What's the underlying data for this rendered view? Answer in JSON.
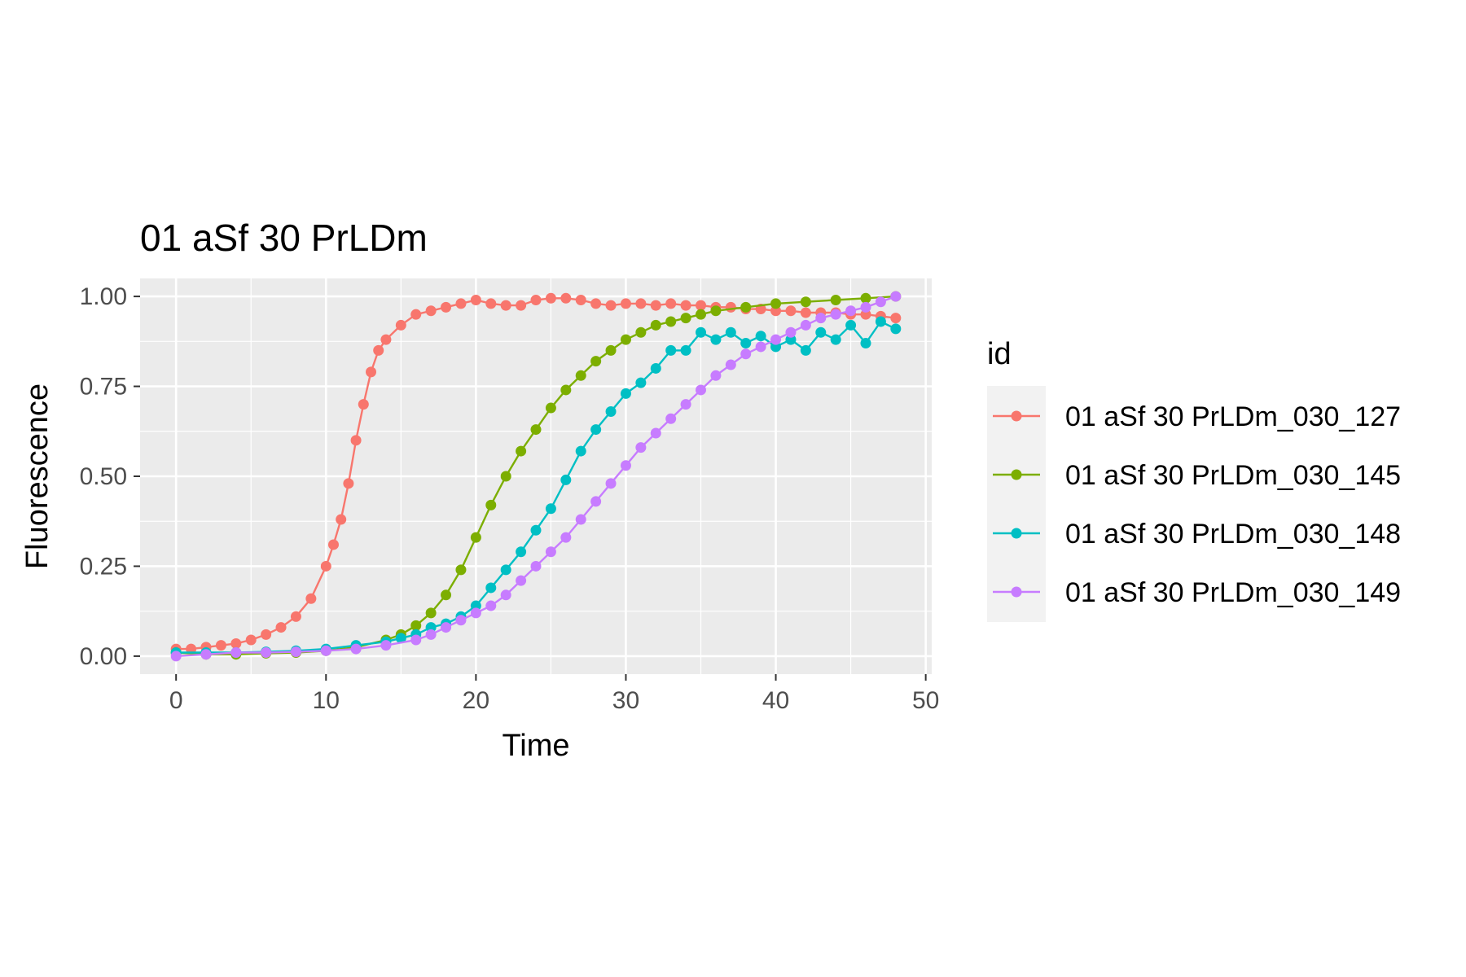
{
  "chart_data": {
    "type": "line",
    "title": "01 aSf 30 PrLDm",
    "xlabel": "Time",
    "ylabel": "Fluorescence",
    "xlim": [
      -2.4,
      50.4
    ],
    "ylim": [
      -0.05,
      1.05
    ],
    "x_ticks": [
      0,
      10,
      20,
      30,
      40,
      50
    ],
    "x_tick_labels": [
      "0",
      "10",
      "20",
      "30",
      "40",
      "50"
    ],
    "y_ticks": [
      0,
      0.25,
      0.5,
      0.75,
      1.0
    ],
    "y_tick_labels": [
      "0.00",
      "0.25",
      "0.50",
      "0.75",
      "1.00"
    ],
    "grid": true,
    "legend": {
      "title": "id",
      "position": "right"
    },
    "series": [
      {
        "name": "01 aSf 30 PrLDm_030_127",
        "color": "#F8766D",
        "x": [
          0,
          1,
          2,
          3,
          4,
          5,
          6,
          7,
          8,
          9,
          10,
          10.5,
          11,
          11.5,
          12,
          12.5,
          13,
          13.5,
          14,
          15,
          16,
          17,
          18,
          19,
          20,
          21,
          22,
          23,
          24,
          25,
          26,
          27,
          28,
          29,
          30,
          31,
          32,
          33,
          34,
          35,
          36,
          37,
          38,
          39,
          40,
          41,
          42,
          43,
          44,
          45,
          46,
          47,
          48
        ],
        "y": [
          0.02,
          0.02,
          0.025,
          0.03,
          0.035,
          0.045,
          0.06,
          0.08,
          0.11,
          0.16,
          0.25,
          0.31,
          0.38,
          0.48,
          0.6,
          0.7,
          0.79,
          0.85,
          0.88,
          0.92,
          0.95,
          0.96,
          0.97,
          0.98,
          0.99,
          0.98,
          0.975,
          0.975,
          0.99,
          0.995,
          0.995,
          0.99,
          0.98,
          0.975,
          0.98,
          0.98,
          0.975,
          0.98,
          0.975,
          0.975,
          0.97,
          0.97,
          0.965,
          0.965,
          0.96,
          0.96,
          0.955,
          0.955,
          0.955,
          0.95,
          0.95,
          0.945,
          0.94
        ]
      },
      {
        "name": "01 aSf 30 PrLDm_030_145",
        "color": "#7CAE00",
        "x": [
          0,
          2,
          4,
          6,
          8,
          10,
          12,
          14,
          15,
          16,
          17,
          18,
          19,
          20,
          21,
          22,
          23,
          24,
          25,
          26,
          27,
          28,
          29,
          30,
          31,
          32,
          33,
          34,
          35,
          36,
          38,
          40,
          42,
          44,
          46,
          48
        ],
        "y": [
          0.01,
          0.005,
          0.005,
          0.008,
          0.01,
          0.015,
          0.025,
          0.045,
          0.06,
          0.085,
          0.12,
          0.17,
          0.24,
          0.33,
          0.42,
          0.5,
          0.57,
          0.63,
          0.69,
          0.74,
          0.78,
          0.82,
          0.85,
          0.88,
          0.9,
          0.92,
          0.93,
          0.94,
          0.95,
          0.96,
          0.97,
          0.98,
          0.985,
          0.99,
          0.995,
          1.0
        ]
      },
      {
        "name": "01 aSf 30 PrLDm_030_148",
        "color": "#00BFC4",
        "x": [
          0,
          2,
          4,
          6,
          8,
          10,
          12,
          14,
          15,
          16,
          17,
          18,
          19,
          20,
          21,
          22,
          23,
          24,
          25,
          26,
          27,
          28,
          29,
          30,
          31,
          32,
          33,
          34,
          35,
          36,
          37,
          38,
          39,
          40,
          41,
          42,
          43,
          44,
          45,
          46,
          47,
          48
        ],
        "y": [
          0.01,
          0.01,
          0.01,
          0.012,
          0.015,
          0.02,
          0.03,
          0.04,
          0.05,
          0.06,
          0.08,
          0.09,
          0.11,
          0.14,
          0.19,
          0.24,
          0.29,
          0.35,
          0.41,
          0.49,
          0.57,
          0.63,
          0.68,
          0.73,
          0.76,
          0.8,
          0.85,
          0.85,
          0.9,
          0.88,
          0.9,
          0.87,
          0.89,
          0.86,
          0.88,
          0.85,
          0.9,
          0.88,
          0.92,
          0.87,
          0.93,
          0.91
        ]
      },
      {
        "name": "01 aSf 30 PrLDm_030_149",
        "color": "#C77CFF",
        "x": [
          0,
          2,
          4,
          6,
          8,
          10,
          12,
          14,
          16,
          17,
          18,
          19,
          20,
          21,
          22,
          23,
          24,
          25,
          26,
          27,
          28,
          29,
          30,
          31,
          32,
          33,
          34,
          35,
          36,
          37,
          38,
          39,
          40,
          41,
          42,
          43,
          44,
          45,
          46,
          47,
          48
        ],
        "y": [
          0.0,
          0.005,
          0.01,
          0.01,
          0.012,
          0.015,
          0.02,
          0.03,
          0.045,
          0.06,
          0.08,
          0.1,
          0.12,
          0.14,
          0.17,
          0.21,
          0.25,
          0.29,
          0.33,
          0.38,
          0.43,
          0.48,
          0.53,
          0.58,
          0.62,
          0.66,
          0.7,
          0.74,
          0.78,
          0.81,
          0.84,
          0.86,
          0.88,
          0.9,
          0.92,
          0.94,
          0.95,
          0.96,
          0.97,
          0.985,
          1.0
        ]
      }
    ]
  }
}
